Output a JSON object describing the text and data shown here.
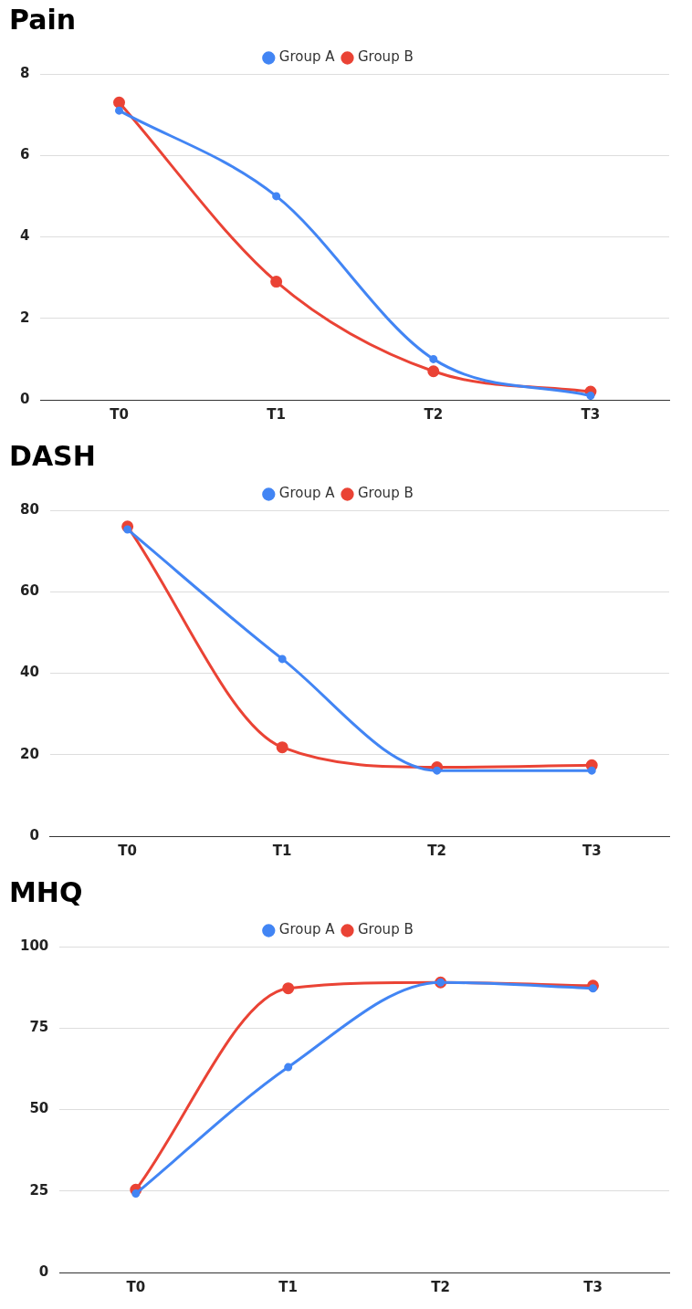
{
  "chart_data": [
    {
      "type": "line",
      "title": "Pain",
      "categories": [
        "T0",
        "T1",
        "T2",
        "T3"
      ],
      "ylim": [
        0,
        8
      ],
      "yticks": [
        0,
        2,
        4,
        6,
        8
      ],
      "grid": "y",
      "legend": "top",
      "marker": "circle",
      "series": [
        {
          "name": "Group A",
          "color": "#4285f4",
          "values": [
            7.1,
            5.0,
            1.0,
            0.1
          ]
        },
        {
          "name": "Group B",
          "color": "#ea4335",
          "values": [
            7.3,
            2.9,
            0.7,
            0.2
          ]
        }
      ]
    },
    {
      "type": "line",
      "title": "DASH",
      "categories": [
        "T0",
        "T1",
        "T2",
        "T3"
      ],
      "ylim": [
        0,
        80
      ],
      "yticks": [
        0,
        20,
        40,
        60,
        80
      ],
      "grid": "y",
      "legend": "top",
      "marker": "circle",
      "series": [
        {
          "name": "Group A",
          "color": "#4285f4",
          "values": [
            75.3,
            43.5,
            16.1,
            16.1
          ]
        },
        {
          "name": "Group B",
          "color": "#ea4335",
          "values": [
            76.0,
            21.8,
            16.9,
            17.4
          ]
        }
      ]
    },
    {
      "type": "line",
      "title": "MHQ",
      "categories": [
        "T0",
        "T1",
        "T2",
        "T3"
      ],
      "ylim": [
        0,
        100
      ],
      "yticks": [
        0,
        25,
        50,
        75,
        100
      ],
      "grid": "y",
      "legend": "top",
      "marker": "circle",
      "series": [
        {
          "name": "Group A",
          "color": "#4285f4",
          "values": [
            24.2,
            63,
            89,
            87.2
          ]
        },
        {
          "name": "Group B",
          "color": "#ea4335",
          "values": [
            25.4,
            87.2,
            89,
            88
          ]
        }
      ]
    }
  ]
}
